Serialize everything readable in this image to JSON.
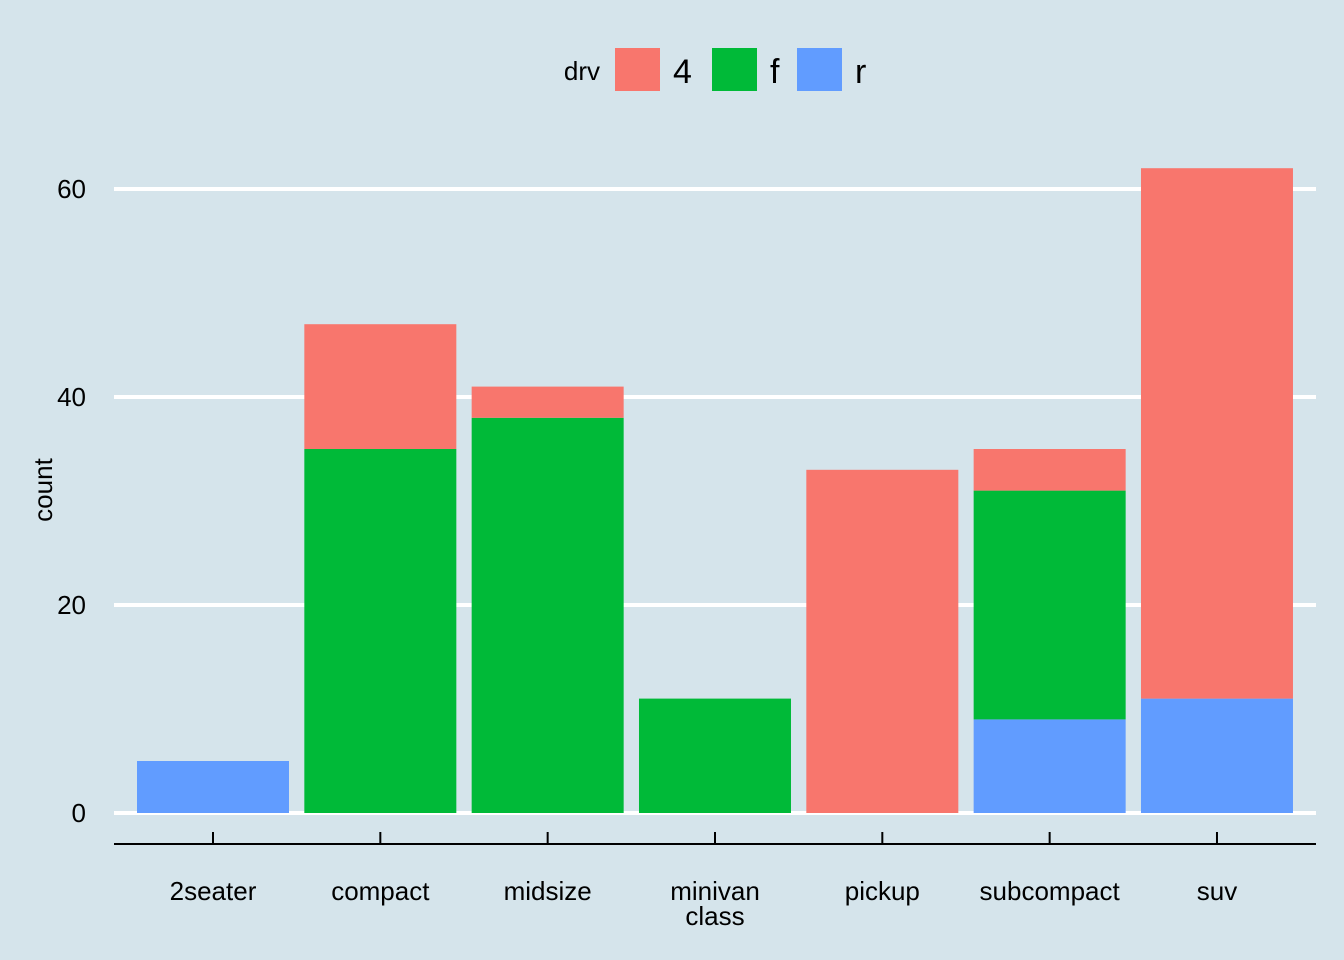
{
  "chart_data": {
    "type": "bar",
    "stacked": true,
    "categories": [
      "2seater",
      "compact",
      "midsize",
      "minivan",
      "pickup",
      "subcompact",
      "suv"
    ],
    "series": [
      {
        "name": "4",
        "color": "#f8766d",
        "values": [
          0,
          12,
          3,
          0,
          33,
          4,
          51
        ]
      },
      {
        "name": "f",
        "color": "#00ba38",
        "values": [
          0,
          35,
          38,
          11,
          0,
          22,
          0
        ]
      },
      {
        "name": "r",
        "color": "#619cff",
        "values": [
          5,
          0,
          0,
          0,
          0,
          9,
          11
        ]
      }
    ],
    "xlabel": "class",
    "ylabel": "count",
    "ylim": [
      0,
      62
    ],
    "yticks": [
      0,
      20,
      40,
      60
    ],
    "legend": {
      "title": "drv",
      "position": "top"
    },
    "grid": "horizontal-major",
    "background": "#d5e4eb"
  }
}
